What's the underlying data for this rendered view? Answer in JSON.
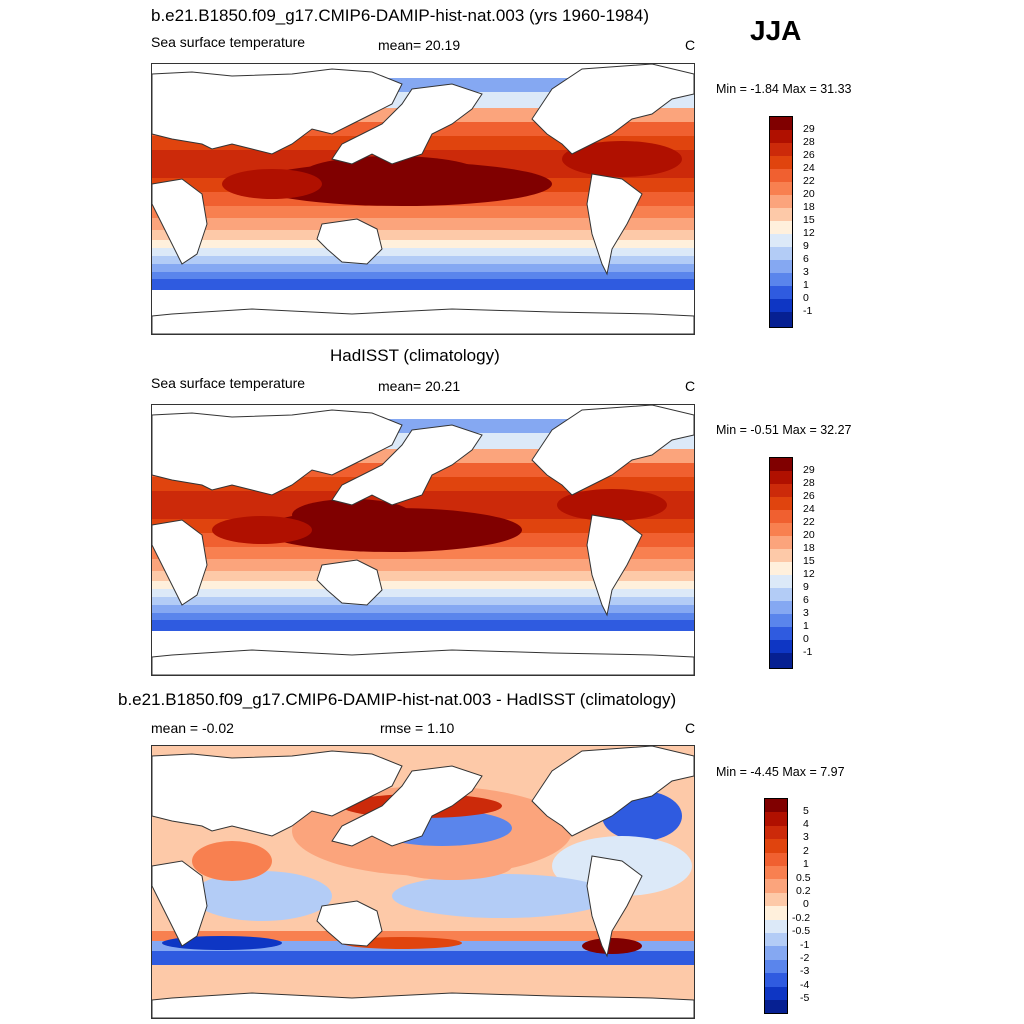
{
  "season": "JJA",
  "panels": [
    {
      "title": "b.e21.B1850.f09_g17.CMIP6-DAMIP-hist-nat.003 (yrs 1960-1984)",
      "left_label": "Sea surface temperature",
      "center_label": "mean=  20.19",
      "units": "C",
      "minmax": "Min =  -1.84 Max =  31.33",
      "colorbar": {
        "labels": [
          "29",
          "28",
          "26",
          "24",
          "22",
          "20",
          "18",
          "15",
          "12",
          "9",
          "6",
          "3",
          "1",
          "0",
          "-1"
        ],
        "colors": [
          "#800000",
          "#b01000",
          "#cc2a0a",
          "#e0440e",
          "#f06030",
          "#f88050",
          "#fba47c",
          "#fdc9a8",
          "#fff0dc",
          "#dce9f8",
          "#b3ccf6",
          "#85a8f2",
          "#5a85ec",
          "#2f5be0",
          "#0e36c4",
          "#062092",
          "#000070"
        ]
      }
    },
    {
      "title": "HadISST (climatology)",
      "left_label": "Sea surface temperature",
      "center_label": "mean=  20.21",
      "units": "C",
      "minmax": "Min =  -0.51 Max =  32.27",
      "colorbar": {
        "labels": [
          "29",
          "28",
          "26",
          "24",
          "22",
          "20",
          "18",
          "15",
          "12",
          "9",
          "6",
          "3",
          "1",
          "0",
          "-1"
        ],
        "colors": [
          "#800000",
          "#b01000",
          "#cc2a0a",
          "#e0440e",
          "#f06030",
          "#f88050",
          "#fba47c",
          "#fdc9a8",
          "#fff0dc",
          "#dce9f8",
          "#b3ccf6",
          "#85a8f2",
          "#5a85ec",
          "#2f5be0",
          "#0e36c4",
          "#062092",
          "#000070"
        ]
      }
    },
    {
      "title": "b.e21.B1850.f09_g17.CMIP6-DAMIP-hist-nat.003 - HadISST (climatology)",
      "left_label": "mean =  -0.02",
      "center_label": "rmse =   1.10",
      "units": "C",
      "minmax": "Min =  -4.45 Max =   7.97",
      "colorbar": {
        "labels": [
          "5",
          "4",
          "3",
          "2",
          "1",
          "0.5",
          "0.2",
          "0",
          "-0.2",
          "-0.5",
          "-1",
          "-2",
          "-3",
          "-4",
          "-5"
        ],
        "colors": [
          "#800000",
          "#b01000",
          "#cc2a0a",
          "#e0440e",
          "#f06030",
          "#f88050",
          "#fba47c",
          "#fdc9a8",
          "#fff0dc",
          "#dce9f8",
          "#b3ccf6",
          "#85a8f2",
          "#5a85ec",
          "#2f5be0",
          "#0e36c4",
          "#062092",
          "#000070"
        ]
      }
    }
  ]
}
